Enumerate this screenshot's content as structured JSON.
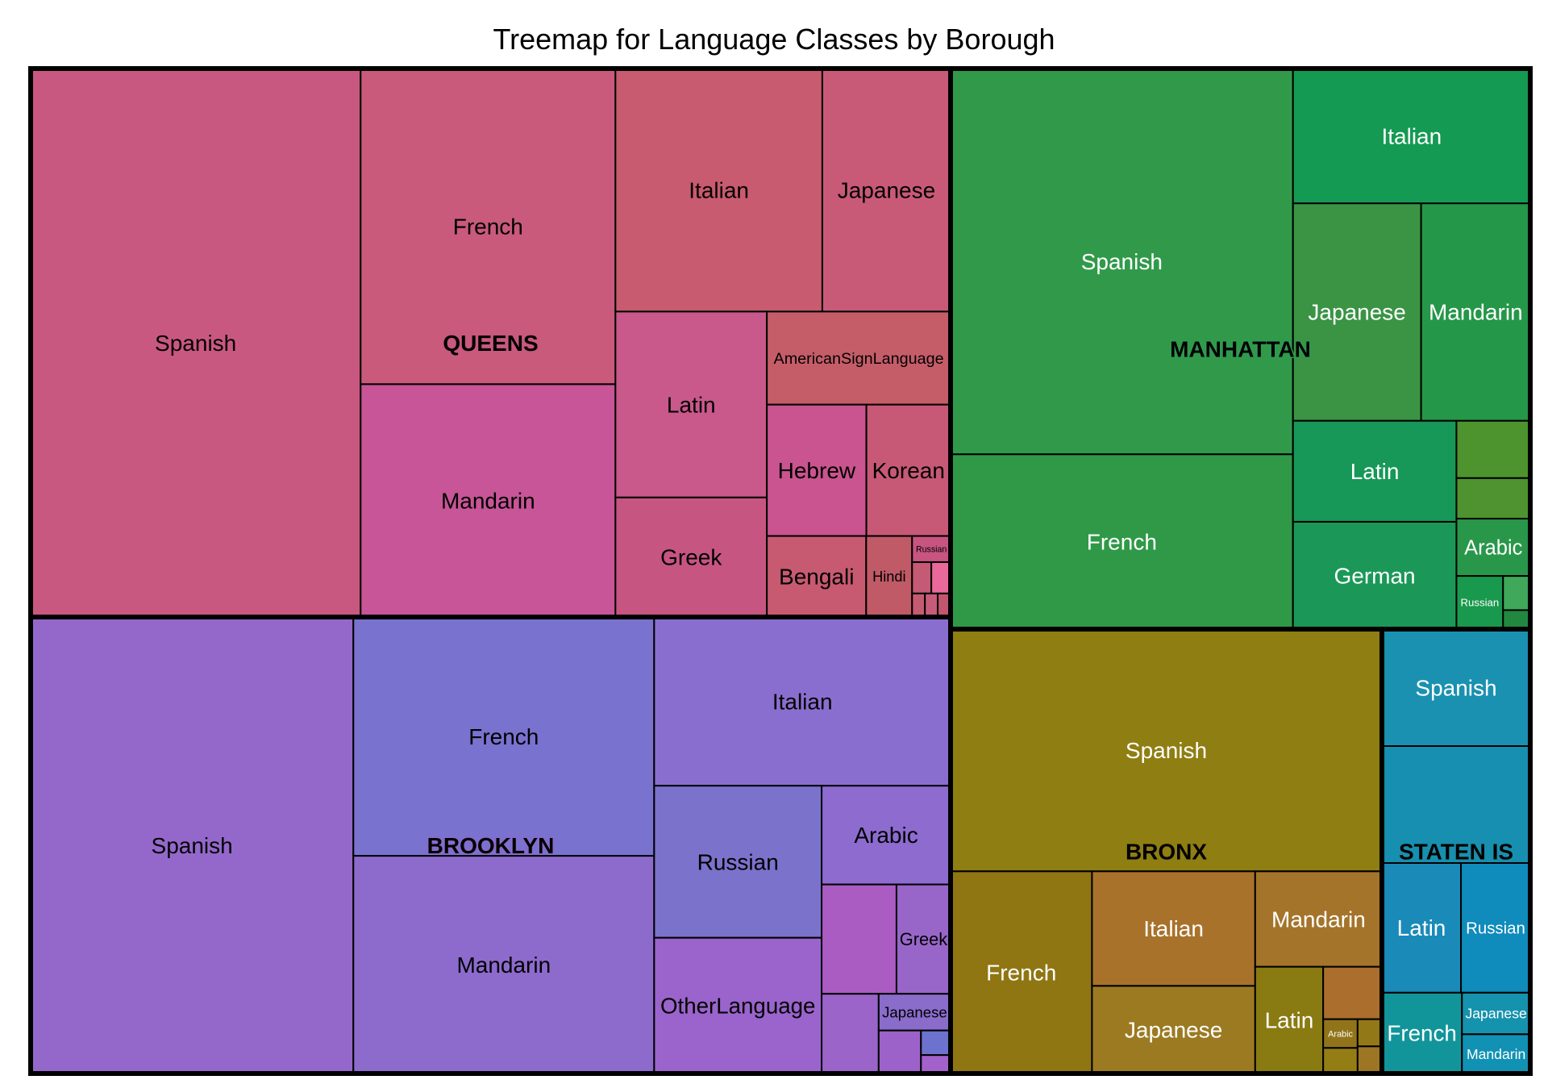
{
  "chart_data": {
    "type": "treemap",
    "title": "Treemap for Language Classes by Borough",
    "groups": [
      {
        "name": "QUEENS",
        "color": "#c9577f",
        "children": [
          {
            "name": "Spanish",
            "value": 180.0,
            "color": "#c95880"
          },
          {
            "name": "French",
            "value": 80.0,
            "color": "#c95a7c"
          },
          {
            "name": "Mandarin",
            "value": 59.0,
            "color": "#c75597"
          },
          {
            "name": "Italian",
            "value": 50.0,
            "color": "#c85b6f"
          },
          {
            "name": "Japanese",
            "value": 31.0,
            "color": "#c85a78"
          },
          {
            "name": "Latin",
            "value": 28.0,
            "color": "#c9588b"
          },
          {
            "name": "Greek",
            "value": 18.0,
            "color": "#c65582"
          },
          {
            "name": "AmericanSignLanguage",
            "value": 17.0,
            "color": "#c55d69"
          },
          {
            "name": "Hebrew",
            "value": 13.0,
            "color": "#c9548f"
          },
          {
            "name": "Korean",
            "value": 11.0,
            "color": "#c75976"
          },
          {
            "name": "Bengali",
            "value": 8.0,
            "color": "#c75a71"
          },
          {
            "name": "Hindi",
            "value": 3.7,
            "color": "#c05a66"
          },
          {
            "name": "Russian",
            "value": 1.0,
            "color": "#c75580"
          },
          {
            "name": "",
            "value": 0.6,
            "color": "#c45a74"
          },
          {
            "name": "",
            "value": 0.6,
            "color": "#e96a9a"
          },
          {
            "name": "",
            "value": 0.3,
            "color": "#c45b70"
          },
          {
            "name": "",
            "value": 0.3,
            "color": "#c85b7a"
          },
          {
            "name": "",
            "value": 0.3,
            "color": "#c2566f"
          }
        ]
      },
      {
        "name": "BROOKLYN",
        "color": "#8a6acd",
        "children": [
          {
            "name": "Spanish",
            "value": 162.0,
            "color": "#9468cb"
          },
          {
            "name": "French",
            "value": 79.0,
            "color": "#7972ce"
          },
          {
            "name": "Mandarin",
            "value": 72.0,
            "color": "#8d6bcd"
          },
          {
            "name": "Italian",
            "value": 55.0,
            "color": "#8a6ecf"
          },
          {
            "name": "Russian",
            "value": 28.0,
            "color": "#7b72cc"
          },
          {
            "name": "OtherLanguage",
            "value": 25.0,
            "color": "#9a64cc"
          },
          {
            "name": "Arabic",
            "value": 14.0,
            "color": "#8d6bcf"
          },
          {
            "name": "",
            "value": 9.0,
            "color": "#ab5cc3"
          },
          {
            "name": "Greek",
            "value": 6.5,
            "color": "#9866c9"
          },
          {
            "name": "",
            "value": 5.0,
            "color": "#9a64c9"
          },
          {
            "name": "Japanese",
            "value": 2.9,
            "color": "#8a6ccb"
          },
          {
            "name": "",
            "value": 2.0,
            "color": "#9c62c9"
          },
          {
            "name": "",
            "value": 0.8,
            "color": "#6d72cf"
          },
          {
            "name": "",
            "value": 0.6,
            "color": "#a361ca"
          }
        ]
      },
      {
        "name": "MANHATTAN",
        "color": "#2f9a50",
        "children": [
          {
            "name": "Spanish",
            "value": 128.0,
            "color": "#319a4a"
          },
          {
            "name": "French",
            "value": 58.0,
            "color": "#2f9947"
          },
          {
            "name": "Italian",
            "value": 31.0,
            "color": "#159a53"
          },
          {
            "name": "Japanese",
            "value": 27.0,
            "color": "#3a9444"
          },
          {
            "name": "Mandarin",
            "value": 23.0,
            "color": "#259748"
          },
          {
            "name": "Latin",
            "value": 16.0,
            "color": "#179858"
          },
          {
            "name": "German",
            "value": 17.0,
            "color": "#1b9857"
          },
          {
            "name": "",
            "value": 4.1,
            "color": "#4e942e"
          },
          {
            "name": "",
            "value": 2.9,
            "color": "#4e932f"
          },
          {
            "name": "Arabic",
            "value": 4.1,
            "color": "#28974a"
          },
          {
            "name": "Russian",
            "value": 2.4,
            "color": "#19994d"
          },
          {
            "name": "",
            "value": 0.9,
            "color": "#3fa85a"
          },
          {
            "name": "",
            "value": 0.5,
            "color": "#22883f"
          }
        ]
      },
      {
        "name": "BRONX",
        "color": "#8f7d14",
        "children": [
          {
            "name": "Spanish",
            "value": 95.0,
            "color": "#8f7e12"
          },
          {
            "name": "French",
            "value": 26.0,
            "color": "#8f7613"
          },
          {
            "name": "Italian",
            "value": 17.0,
            "color": "#a8722a"
          },
          {
            "name": "Japanese",
            "value": 13.0,
            "color": "#9b7a22"
          },
          {
            "name": "Mandarin",
            "value": 11.0,
            "color": "#a4742a"
          },
          {
            "name": "Latin",
            "value": 6.6,
            "color": "#8a7a12"
          },
          {
            "name": "",
            "value": 2.8,
            "color": "#ab6e2c"
          },
          {
            "name": "Arabic",
            "value": 0.9,
            "color": "#917419"
          },
          {
            "name": "",
            "value": 0.8,
            "color": "#947d15"
          },
          {
            "name": "",
            "value": 0.6,
            "color": "#927817"
          },
          {
            "name": "",
            "value": 0.6,
            "color": "#9d7624"
          }
        ]
      },
      {
        "name": "STATEN IS",
        "color": "#1a8fab",
        "children": [
          {
            "name": "Spanish",
            "value": 11.0,
            "color": "#1a91b0"
          },
          {
            "name": "",
            "value": 11.0,
            "color": "#168fb1"
          },
          {
            "name": "Latin",
            "value": 6.5,
            "color": "#1a8ab8"
          },
          {
            "name": "Russian",
            "value": 5.7,
            "color": "#0f8bbc"
          },
          {
            "name": "French",
            "value": 4.1,
            "color": "#12959a"
          },
          {
            "name": "Japanese",
            "value": 1.8,
            "color": "#1592ad"
          },
          {
            "name": "Mandarin",
            "value": 1.7,
            "color": "#1191b4"
          }
        ]
      }
    ]
  }
}
